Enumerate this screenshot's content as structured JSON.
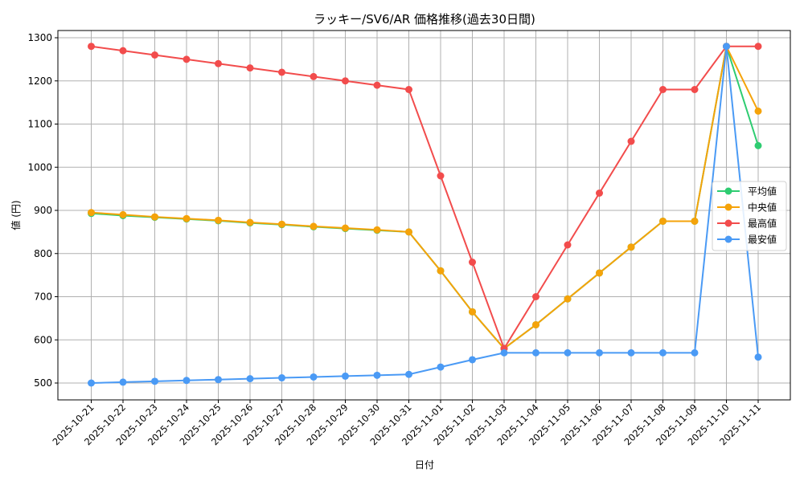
{
  "chart_data": {
    "type": "line",
    "title": "ラッキー/SV6/AR 価格推移(過去30日間)",
    "xlabel": "日付",
    "ylabel": "値 (円)",
    "ylim": [
      460,
      1320
    ],
    "yticks": [
      500,
      600,
      700,
      800,
      900,
      1000,
      1100,
      1200,
      1300
    ],
    "grid": true,
    "legend_position": "center right",
    "categories": [
      "2025-10-21",
      "2025-10-22",
      "2025-10-23",
      "2025-10-24",
      "2025-10-25",
      "2025-10-26",
      "2025-10-27",
      "2025-10-28",
      "2025-10-29",
      "2025-10-30",
      "2025-10-31",
      "2025-11-01",
      "2025-11-02",
      "2025-11-03",
      "2025-11-04",
      "2025-11-05",
      "2025-11-06",
      "2025-11-07",
      "2025-11-08",
      "2025-11-09",
      "2025-11-10",
      "2025-11-11"
    ],
    "series": [
      {
        "name": "平均値",
        "color": "#2ecc71",
        "values": [
          893,
          888,
          884,
          880,
          876,
          871,
          867,
          862,
          858,
          854,
          850,
          760,
          665,
          580,
          635,
          695,
          755,
          815,
          875,
          875,
          1280,
          1050
        ]
      },
      {
        "name": "中央値",
        "color": "#f5a30a",
        "values": [
          895,
          890,
          885,
          881,
          877,
          872,
          868,
          863,
          859,
          855,
          850,
          760,
          665,
          580,
          635,
          695,
          755,
          815,
          875,
          875,
          1280,
          1130
        ]
      },
      {
        "name": "最高値",
        "color": "#f24c4c",
        "values": [
          1280,
          1270,
          1260,
          1250,
          1240,
          1230,
          1220,
          1210,
          1200,
          1190,
          1180,
          980,
          780,
          580,
          700,
          820,
          940,
          1060,
          1180,
          1180,
          1280,
          1280
        ]
      },
      {
        "name": "最安値",
        "color": "#4a9af5",
        "values": [
          500,
          502,
          504,
          506,
          508,
          510,
          512,
          514,
          516,
          518,
          520,
          537,
          554,
          570,
          570,
          570,
          570,
          570,
          570,
          570,
          1280,
          560
        ]
      }
    ]
  }
}
